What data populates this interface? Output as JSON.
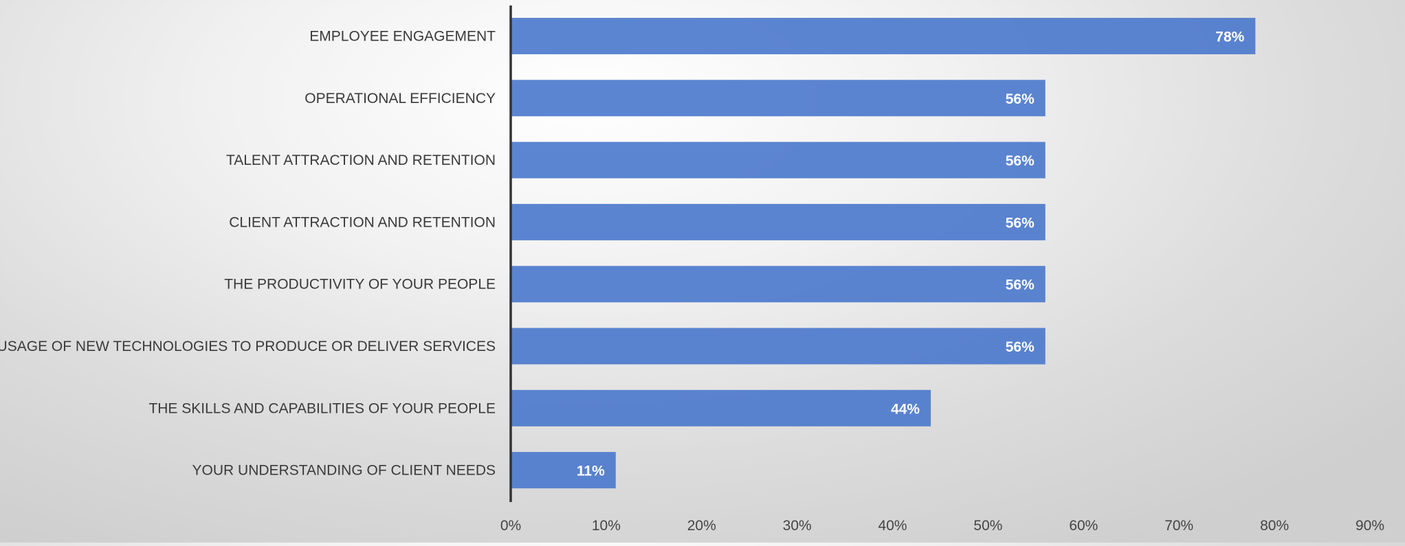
{
  "chart_data": {
    "type": "bar",
    "orientation": "horizontal",
    "title": "",
    "xlabel": "",
    "ylabel": "",
    "categories": [
      "EMPLOYEE ENGAGEMENT",
      "OPERATIONAL EFFICIENCY",
      "TALENT ATTRACTION AND RETENTION",
      "CLIENT ATTRACTION AND RETENTION",
      "THE PRODUCTIVITY OF YOUR PEOPLE",
      "THE USAGE OF NEW TECHNOLOGIES TO PRODUCE OR DELIVER SERVICES",
      "THE SKILLS AND CAPABILITIES OF YOUR PEOPLE",
      "YOUR UNDERSTANDING OF CLIENT NEEDS"
    ],
    "values": [
      78,
      56,
      56,
      56,
      56,
      56,
      44,
      11
    ],
    "data_labels": [
      "78%",
      "56%",
      "56%",
      "56%",
      "56%",
      "56%",
      "44%",
      "11%"
    ],
    "xlim": [
      0,
      90
    ],
    "x_ticks": [
      0,
      10,
      20,
      30,
      40,
      50,
      60,
      70,
      80,
      90
    ],
    "x_tick_labels": [
      "0%",
      "10%",
      "20%",
      "30%",
      "40%",
      "50%",
      "60%",
      "70%",
      "80%",
      "90%"
    ],
    "grid": "vertical",
    "legend": "none",
    "colors": {
      "bar": "#4a78cc",
      "bar_label": "#ffffff",
      "axis_line": "#333333"
    }
  }
}
